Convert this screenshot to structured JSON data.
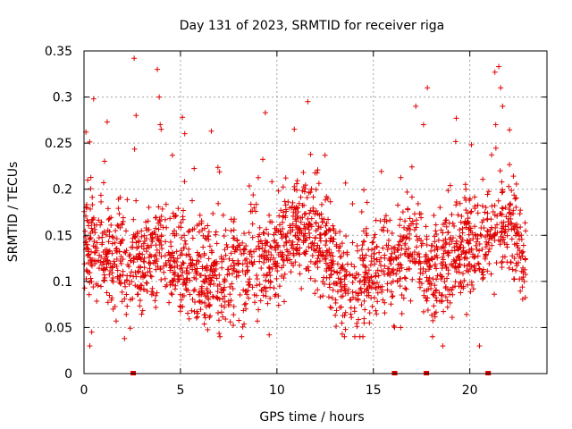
{
  "chart_data": {
    "type": "scatter",
    "title": "Day 131 of 2023, SRMTID for receiver riga",
    "xlabel": "GPS time / hours",
    "ylabel": "SRMTID / TECUs",
    "xlim": [
      0,
      24
    ],
    "ylim": [
      0,
      0.35
    ],
    "x_ticks": [
      0,
      5,
      10,
      15,
      20
    ],
    "x_tick_labels": [
      "0",
      "5",
      "10",
      "15",
      "20"
    ],
    "y_ticks": [
      0,
      0.05,
      0.1,
      0.15,
      0.2,
      0.25,
      0.3,
      0.35
    ],
    "y_tick_labels": [
      "0",
      "0.05",
      "0.1",
      "0.15",
      "0.2",
      "0.25",
      "0.3",
      "0.35"
    ],
    "grid": true,
    "marker": "+",
    "color": "#e00000",
    "x_range_of_points": [
      0.0,
      22.9
    ],
    "y_mean": 0.125,
    "y_spread": 0.05,
    "zero_value_points_x": [
      2.55,
      16.1,
      17.75,
      20.95
    ],
    "profile": [
      {
        "t": 0.0,
        "mean": 0.15
      },
      {
        "t": 1.0,
        "mean": 0.13
      },
      {
        "t": 2.0,
        "mean": 0.12
      },
      {
        "t": 3.0,
        "mean": 0.12
      },
      {
        "t": 4.0,
        "mean": 0.14
      },
      {
        "t": 5.0,
        "mean": 0.12
      },
      {
        "t": 6.0,
        "mean": 0.11
      },
      {
        "t": 7.0,
        "mean": 0.1
      },
      {
        "t": 8.0,
        "mean": 0.11
      },
      {
        "t": 9.0,
        "mean": 0.12
      },
      {
        "t": 10.0,
        "mean": 0.13
      },
      {
        "t": 11.0,
        "mean": 0.16
      },
      {
        "t": 12.0,
        "mean": 0.15
      },
      {
        "t": 13.0,
        "mean": 0.12
      },
      {
        "t": 14.0,
        "mean": 0.09
      },
      {
        "t": 15.0,
        "mean": 0.12
      },
      {
        "t": 16.0,
        "mean": 0.11
      },
      {
        "t": 17.0,
        "mean": 0.14
      },
      {
        "t": 18.0,
        "mean": 0.11
      },
      {
        "t": 19.0,
        "mean": 0.12
      },
      {
        "t": 20.0,
        "mean": 0.14
      },
      {
        "t": 21.0,
        "mean": 0.15
      },
      {
        "t": 22.0,
        "mean": 0.17
      },
      {
        "t": 22.9,
        "mean": 0.11
      }
    ],
    "outliers": [
      {
        "x": 2.6,
        "y": 0.342
      },
      {
        "x": 3.8,
        "y": 0.33
      },
      {
        "x": 3.9,
        "y": 0.3
      },
      {
        "x": 0.5,
        "y": 0.298
      },
      {
        "x": 9.4,
        "y": 0.283
      },
      {
        "x": 11.6,
        "y": 0.295
      },
      {
        "x": 17.8,
        "y": 0.31
      },
      {
        "x": 21.5,
        "y": 0.333
      },
      {
        "x": 21.3,
        "y": 0.327
      },
      {
        "x": 21.6,
        "y": 0.31
      },
      {
        "x": 21.7,
        "y": 0.29
      },
      {
        "x": 5.1,
        "y": 0.278
      },
      {
        "x": 19.3,
        "y": 0.277
      },
      {
        "x": 17.2,
        "y": 0.29
      },
      {
        "x": 1.2,
        "y": 0.273
      },
      {
        "x": 10.9,
        "y": 0.265
      },
      {
        "x": 6.6,
        "y": 0.263
      },
      {
        "x": 0.1,
        "y": 0.262
      },
      {
        "x": 2.7,
        "y": 0.28
      },
      {
        "x": 17.6,
        "y": 0.27
      },
      {
        "x": 4.0,
        "y": 0.265
      },
      {
        "x": 0.3,
        "y": 0.03
      },
      {
        "x": 2.1,
        "y": 0.038
      },
      {
        "x": 18.6,
        "y": 0.03
      },
      {
        "x": 20.5,
        "y": 0.03
      },
      {
        "x": 0.4,
        "y": 0.045
      },
      {
        "x": 9.6,
        "y": 0.042
      }
    ]
  }
}
